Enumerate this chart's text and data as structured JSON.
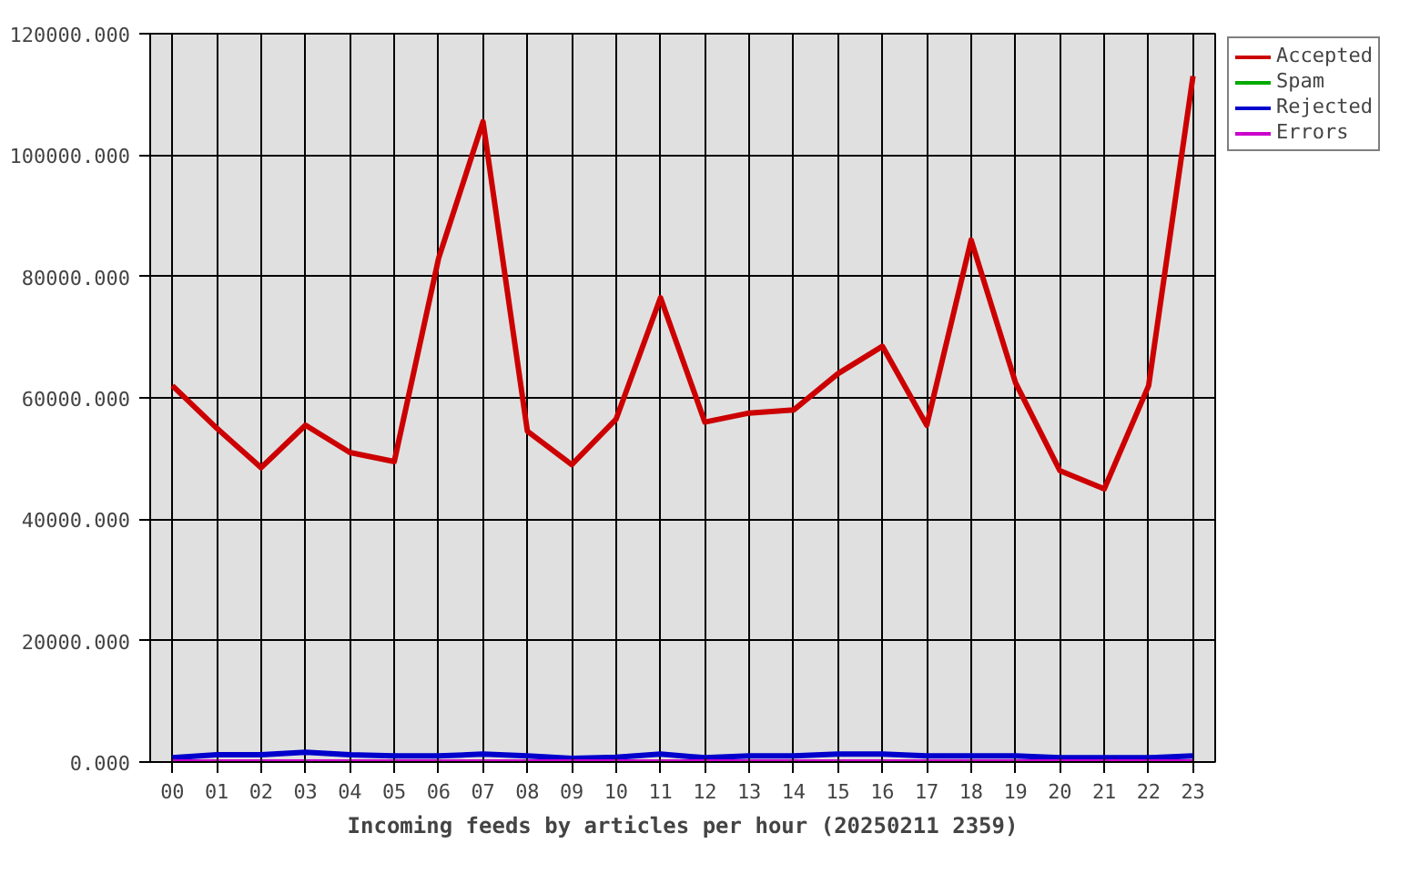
{
  "chart_data": {
    "type": "line",
    "xlabel": "Incoming feeds by articles per hour (20250211 2359)",
    "categories": [
      "00",
      "01",
      "02",
      "03",
      "04",
      "05",
      "06",
      "07",
      "08",
      "09",
      "10",
      "11",
      "12",
      "13",
      "14",
      "15",
      "16",
      "17",
      "18",
      "19",
      "20",
      "21",
      "22",
      "23"
    ],
    "series": [
      {
        "name": "Accepted",
        "color": "#cc0000",
        "values": [
          62000,
          55000,
          48500,
          55500,
          51000,
          49500,
          83000,
          105500,
          54500,
          49000,
          56500,
          76500,
          56000,
          57500,
          58000,
          64000,
          68500,
          55500,
          86000,
          62500,
          48000,
          45000,
          62000,
          113000
        ]
      },
      {
        "name": "Spam",
        "color": "#00aa00",
        "values": [
          null,
          null,
          null,
          null,
          null,
          null,
          null,
          null,
          null,
          null,
          null,
          null,
          null,
          null,
          null,
          null,
          null,
          null,
          null,
          null,
          null,
          null,
          null,
          null
        ]
      },
      {
        "name": "Rejected",
        "color": "#0000cc",
        "values": [
          700,
          1200,
          1200,
          1600,
          1200,
          1000,
          1000,
          1300,
          1000,
          600,
          800,
          1300,
          700,
          1000,
          1000,
          1300,
          1300,
          1000,
          1000,
          1000,
          700,
          700,
          700,
          1000
        ]
      },
      {
        "name": "Errors",
        "color": "#cc00cc",
        "values": [
          0,
          0,
          0,
          0,
          0,
          0,
          0,
          0,
          0,
          0,
          0,
          0,
          0,
          0,
          0,
          0,
          0,
          0,
          0,
          0,
          0,
          0,
          0,
          0
        ]
      }
    ],
    "ylim": [
      0,
      120000
    ],
    "yticks": [
      {
        "value": 0,
        "label": "0.000"
      },
      {
        "value": 20000,
        "label": "20000.000"
      },
      {
        "value": 40000,
        "label": "40000.000"
      },
      {
        "value": 60000,
        "label": "60000.000"
      },
      {
        "value": 80000,
        "label": "80000.000"
      },
      {
        "value": 100000,
        "label": "100000.000"
      },
      {
        "value": 120000,
        "label": "120000.000"
      }
    ],
    "grid": true,
    "legend": "top right"
  }
}
